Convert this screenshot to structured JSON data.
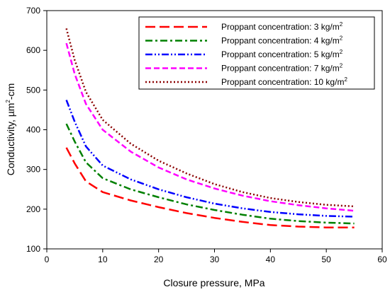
{
  "chart_data": {
    "type": "line",
    "title": "",
    "xlabel": "Closure pressure, MPa",
    "ylabel_main": "Conductivity, µm",
    "ylabel_sup": "2",
    "ylabel_tail": "-cm",
    "xlim": [
      0,
      60
    ],
    "ylim": [
      100,
      700
    ],
    "xticks": [
      "0",
      "10",
      "20",
      "30",
      "40",
      "50",
      "60"
    ],
    "yticks": [
      "100",
      "200",
      "300",
      "400",
      "500",
      "600",
      "700"
    ],
    "grid": false,
    "legend_position": "top-right",
    "x": [
      3.5,
      5,
      7,
      10,
      15,
      20,
      25,
      30,
      35,
      40,
      45,
      50,
      55
    ],
    "series": [
      {
        "name_prefix": "Proppant concentration: 3 kg/m",
        "name_sup": "2",
        "color": "#ff0000",
        "dash": "14,6",
        "values": [
          355,
          315,
          270,
          243,
          222,
          205,
          190,
          178,
          168,
          160,
          156,
          154,
          154
        ]
      },
      {
        "name_prefix": "Proppant concentration: 4 kg/m",
        "name_sup": "2",
        "color": "#008000",
        "dash": "10,4,3,4",
        "values": [
          415,
          370,
          318,
          278,
          250,
          230,
          212,
          198,
          186,
          176,
          170,
          166,
          164
        ]
      },
      {
        "name_prefix": "Proppant concentration: 5 kg/m",
        "name_sup": "2",
        "color": "#0000ff",
        "dash": "10,3,2,3,2,3",
        "values": [
          475,
          420,
          358,
          310,
          275,
          250,
          230,
          214,
          202,
          193,
          187,
          183,
          181
        ]
      },
      {
        "name_prefix": "Proppant concentration: 7 kg/m",
        "name_sup": "2",
        "color": "#ff00ff",
        "dash": "8,4",
        "values": [
          618,
          540,
          465,
          400,
          345,
          305,
          275,
          252,
          234,
          220,
          210,
          202,
          196
        ]
      },
      {
        "name_prefix": "Proppant concentration: 10 kg/m",
        "name_sup": "2",
        "color": "#8b0000",
        "dash": "2,3",
        "values": [
          655,
          575,
          495,
          425,
          365,
          322,
          290,
          263,
          243,
          228,
          218,
          211,
          207
        ]
      }
    ]
  }
}
